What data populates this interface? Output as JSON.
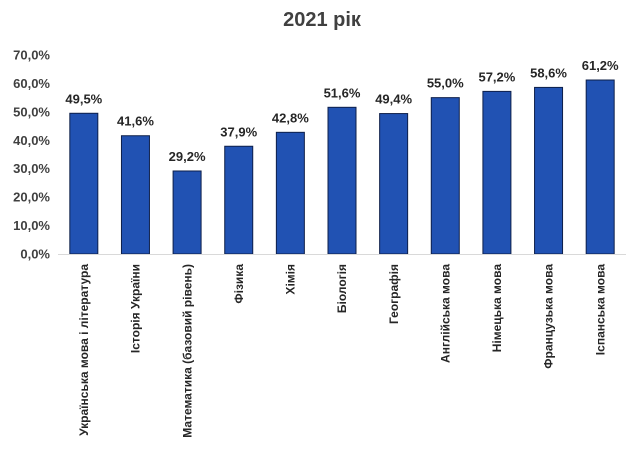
{
  "chart_data": {
    "type": "bar",
    "title": "2021 рік",
    "categories": [
      "Українська мова і література",
      "Історія України",
      "Математика (базовий рівень)",
      "Фізика",
      "Хімія",
      "Біологія",
      "Географія",
      "Англійська мова",
      "Німецька мова",
      "Французька мова",
      "Іспанська мова"
    ],
    "values": [
      49.5,
      41.6,
      29.2,
      37.9,
      42.8,
      51.6,
      49.4,
      55.0,
      57.2,
      58.6,
      61.2
    ],
    "value_labels": [
      "49,5%",
      "41,6%",
      "29,2%",
      "37,9%",
      "42,8%",
      "51,6%",
      "49,4%",
      "55,0%",
      "57,2%",
      "58,6%",
      "61,2%"
    ],
    "ylim": [
      0,
      70
    ],
    "yticks": [
      0,
      10,
      20,
      30,
      40,
      50,
      60,
      70
    ],
    "ytick_labels": [
      "0,0%",
      "10,0%",
      "20,0%",
      "30,0%",
      "40,0%",
      "50,0%",
      "60,0%",
      "70,0%"
    ],
    "grid": false,
    "bar_color": "#2152B3",
    "bar_edge_color": "#0D1F4A"
  }
}
